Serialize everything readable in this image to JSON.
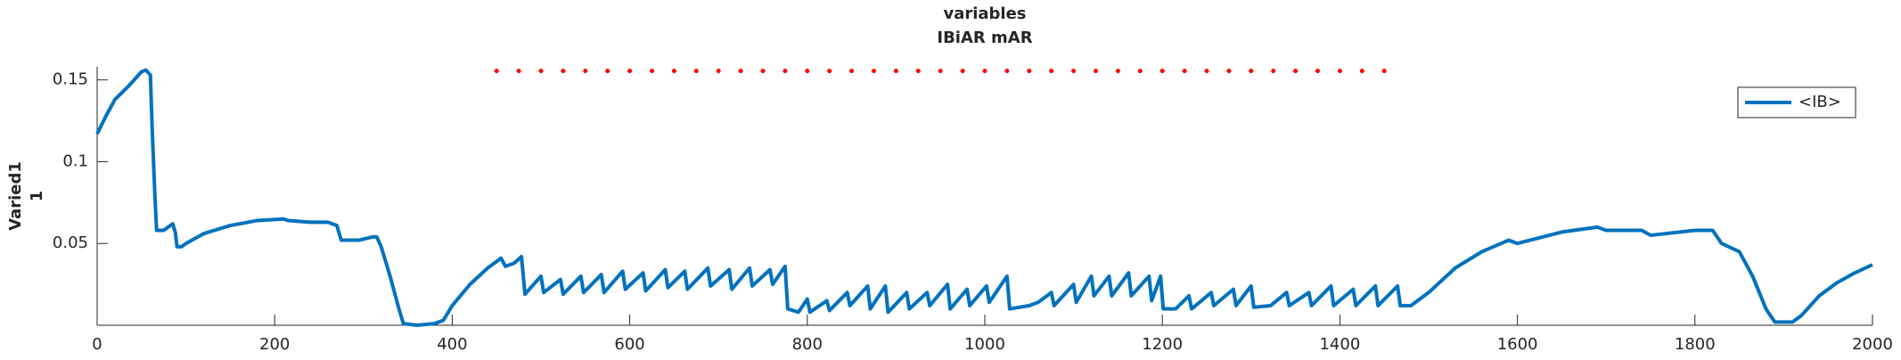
{
  "chart_data": {
    "type": "line",
    "title": "variables",
    "subtitle": "IBiAR mAR",
    "ylabel": [
      "Varied1",
      "1"
    ],
    "xlim": [
      0,
      2000
    ],
    "xticks": [
      0,
      200,
      400,
      600,
      800,
      1000,
      1200,
      1400,
      1600,
      1800,
      2000
    ],
    "ylim": [
      0,
      0.158
    ],
    "yticks": [
      0.05,
      0.1,
      0.15
    ],
    "legend": "upper right",
    "series": [
      {
        "name": "<IB>",
        "color": "#0072bd",
        "style": "solid",
        "x": [
          0,
          10,
          20,
          35,
          50,
          55,
          60,
          62,
          65,
          67,
          75,
          85,
          88,
          90,
          95,
          100,
          120,
          150,
          180,
          210,
          215,
          240,
          260,
          270,
          275,
          295,
          310,
          315,
          320,
          330,
          340,
          345,
          360,
          380,
          390,
          400,
          420,
          440,
          455,
          460,
          470,
          478,
          482,
          500,
          503,
          522,
          525,
          545,
          548,
          568,
          571,
          592,
          595,
          615,
          618,
          640,
          643,
          662,
          665,
          688,
          691,
          712,
          715,
          735,
          738,
          758,
          761,
          775,
          778,
          790,
          800,
          803,
          822,
          825,
          845,
          848,
          868,
          871,
          888,
          891,
          912,
          915,
          935,
          938,
          958,
          961,
          980,
          983,
          1002,
          1005,
          1025,
          1028,
          1050,
          1060,
          1075,
          1078,
          1100,
          1103,
          1120,
          1123,
          1140,
          1143,
          1162,
          1165,
          1185,
          1188,
          1198,
          1201,
          1215,
          1230,
          1233,
          1255,
          1258,
          1280,
          1283,
          1300,
          1303,
          1322,
          1340,
          1343,
          1365,
          1368,
          1390,
          1393,
          1415,
          1418,
          1440,
          1443,
          1465,
          1468,
          1480,
          1500,
          1530,
          1560,
          1590,
          1600,
          1650,
          1690,
          1700,
          1740,
          1750,
          1800,
          1820,
          1830,
          1850,
          1865,
          1880,
          1890,
          1910,
          1920,
          1940,
          1960,
          1980,
          2000
        ],
        "values": [
          0.117,
          0.128,
          0.138,
          0.146,
          0.155,
          0.156,
          0.153,
          0.12,
          0.08,
          0.058,
          0.058,
          0.062,
          0.057,
          0.048,
          0.048,
          0.05,
          0.056,
          0.061,
          0.064,
          0.065,
          0.064,
          0.063,
          0.063,
          0.061,
          0.052,
          0.052,
          0.054,
          0.054,
          0.048,
          0.03,
          0.01,
          0.001,
          0.0,
          0.001,
          0.003,
          0.012,
          0.025,
          0.035,
          0.041,
          0.036,
          0.038,
          0.042,
          0.019,
          0.03,
          0.02,
          0.028,
          0.019,
          0.03,
          0.02,
          0.031,
          0.02,
          0.033,
          0.022,
          0.032,
          0.021,
          0.034,
          0.023,
          0.033,
          0.022,
          0.035,
          0.024,
          0.034,
          0.022,
          0.035,
          0.024,
          0.034,
          0.025,
          0.036,
          0.01,
          0.008,
          0.016,
          0.008,
          0.015,
          0.009,
          0.02,
          0.012,
          0.024,
          0.01,
          0.024,
          0.008,
          0.02,
          0.01,
          0.02,
          0.012,
          0.025,
          0.01,
          0.022,
          0.012,
          0.024,
          0.014,
          0.03,
          0.01,
          0.012,
          0.014,
          0.02,
          0.012,
          0.025,
          0.014,
          0.03,
          0.018,
          0.03,
          0.018,
          0.032,
          0.018,
          0.03,
          0.015,
          0.03,
          0.01,
          0.01,
          0.018,
          0.01,
          0.02,
          0.012,
          0.022,
          0.012,
          0.024,
          0.011,
          0.012,
          0.02,
          0.012,
          0.02,
          0.012,
          0.024,
          0.012,
          0.022,
          0.012,
          0.024,
          0.012,
          0.024,
          0.012,
          0.012,
          0.02,
          0.035,
          0.045,
          0.052,
          0.05,
          0.057,
          0.06,
          0.058,
          0.058,
          0.055,
          0.058,
          0.058,
          0.05,
          0.045,
          0.03,
          0.01,
          0.002,
          0.002,
          0.006,
          0.018,
          0.026,
          0.032,
          0.037
        ]
      },
      {
        "color": "#ff0000",
        "style": "dotted",
        "x": [
          450,
          475,
          500,
          525,
          550,
          575,
          600,
          625,
          650,
          675,
          700,
          725,
          750,
          775,
          800,
          825,
          850,
          875,
          900,
          925,
          950,
          975,
          1000,
          1025,
          1050,
          1075,
          1100,
          1125,
          1150,
          1175,
          1200,
          1225,
          1250,
          1275,
          1300,
          1325,
          1350,
          1375,
          1400,
          1425,
          1450,
          1475
        ],
        "values": [
          0.1555,
          0.1555,
          0.1555,
          0.1555,
          0.1555,
          0.1555,
          0.1555,
          0.1555,
          0.1555,
          0.1555,
          0.1555,
          0.1555,
          0.1555,
          0.1555,
          0.1555,
          0.1555,
          0.1555,
          0.1555,
          0.1555,
          0.1555,
          0.1555,
          0.1555,
          0.1555,
          0.1555,
          0.1555,
          0.1555,
          0.1555,
          0.1555,
          0.1555,
          0.1555,
          0.1555,
          0.1555,
          0.1555,
          0.1555,
          0.1555,
          0.1555,
          0.1555,
          0.1555,
          0.1555,
          0.1555,
          0.1555,
          0.1555
        ]
      }
    ]
  }
}
